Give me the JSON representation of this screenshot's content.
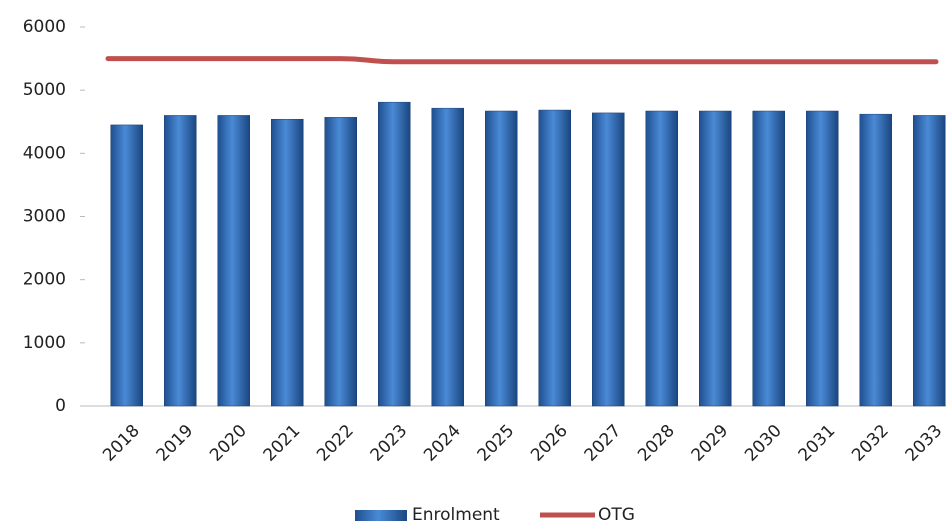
{
  "chart_data": {
    "type": "bar_line",
    "categories": [
      "2018",
      "2019",
      "2020",
      "2021",
      "2022",
      "2023",
      "2024",
      "2025",
      "2026",
      "2027",
      "2028",
      "2029",
      "2030",
      "2031",
      "2032",
      "2033"
    ],
    "series": [
      {
        "name": "Enrolment",
        "type": "bar",
        "color": "#2e6fbf",
        "values": [
          4450,
          4600,
          4600,
          4540,
          4570,
          4810,
          4715,
          4670,
          4685,
          4640,
          4670,
          4670,
          4670,
          4670,
          4620,
          4600
        ]
      },
      {
        "name": "OTG",
        "type": "line",
        "color": "#c0504d",
        "values": [
          5500,
          5500,
          5500,
          5500,
          5500,
          5450,
          5450,
          5450,
          5450,
          5450,
          5450,
          5450,
          5450,
          5450,
          5450,
          5450
        ]
      }
    ],
    "ylim": [
      0,
      6000
    ],
    "yticks": [
      0,
      1000,
      2000,
      3000,
      4000,
      5000,
      6000
    ],
    "grid": false,
    "legend": "bottom"
  }
}
